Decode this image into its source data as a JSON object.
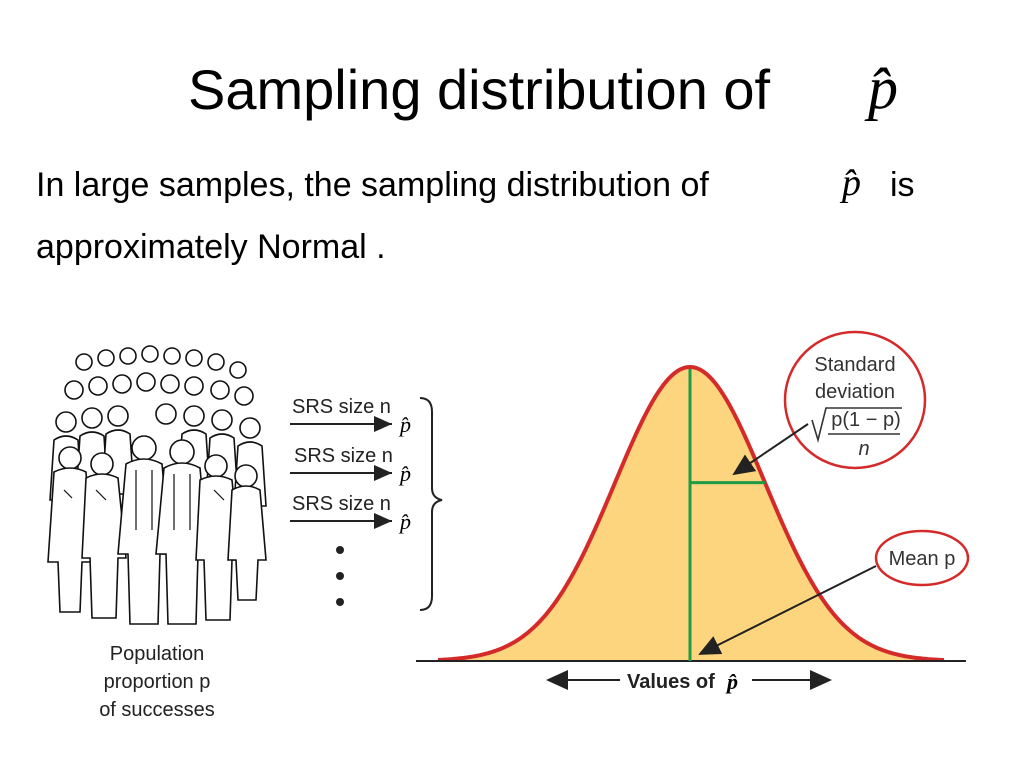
{
  "slide": {
    "title": "Sampling distribution of",
    "title_symbol": "p̂",
    "body_line1": "In large samples, the sampling distribution of",
    "body_symbol": "p̂",
    "body_line1_end": "is",
    "body_line2": "approximately Normal ."
  },
  "diagram": {
    "population_label": [
      "Population",
      "proportion p",
      "of successes"
    ],
    "samples": [
      {
        "label": "SRS size n",
        "symbol": "p̂"
      },
      {
        "label": "SRS size n",
        "symbol": "p̂"
      },
      {
        "label": "SRS size n",
        "symbol": "p̂"
      }
    ],
    "axis_label": "Values of",
    "axis_symbol": "p̂",
    "sd_callout": [
      "Standard",
      "deviation"
    ],
    "sd_formula_numerator": "p(1 − p)",
    "sd_formula_denominator": "n",
    "mean_callout": "Mean p",
    "colors": {
      "curve_fill": "#fcd57e",
      "curve_stroke": "#d42a2a",
      "center_line": "#1f9a45",
      "callout_ring": "#d42a2a"
    }
  }
}
